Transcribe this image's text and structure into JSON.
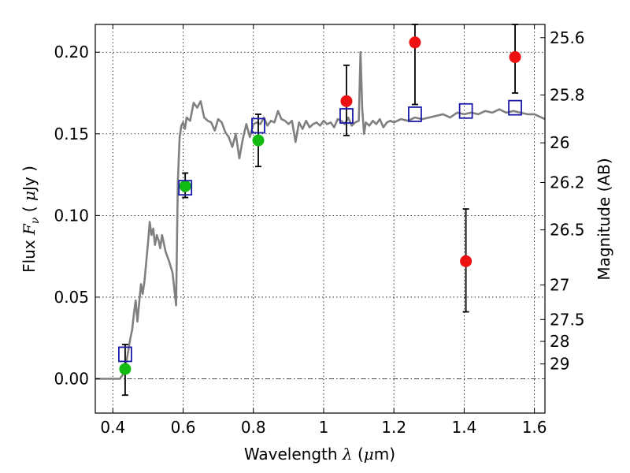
{
  "chart_data": {
    "type": "scatter",
    "xlabel": {
      "text": "Wavelength",
      "symbol": "λ",
      "unit_open": "(",
      "unit_mu": "μ",
      "unit_rest": "m)"
    },
    "ylabel": {
      "text": "Flux",
      "symbol": "F",
      "subscript": "ν",
      "unit_open": "(",
      "unit_mu": "μ",
      "unit_rest": "Jy",
      "unit_close": ")"
    },
    "ylabel_right": "Magnitude (AB)",
    "xlim": [
      0.35,
      1.63
    ],
    "ylim": [
      -0.021,
      0.217
    ],
    "x_ticks": [
      0.4,
      0.6,
      0.8,
      1.0,
      1.2,
      1.4,
      1.6
    ],
    "x_tick_labels": [
      "0.4",
      "0.6",
      "0.8",
      "1",
      "1.2",
      "1.4",
      "1.6"
    ],
    "y_ticks": [
      0.0,
      0.05,
      0.1,
      0.15,
      0.2
    ],
    "y_tick_labels": [
      "0.00",
      "0.05",
      "0.10",
      "0.15",
      "0.20"
    ],
    "mag_ticks": [
      {
        "label": "25.6",
        "flux": 0.2089
      },
      {
        "label": "25.8",
        "flux": 0.1738
      },
      {
        "label": "26",
        "flux": 0.1445
      },
      {
        "label": "26.2",
        "flux": 0.1202
      },
      {
        "label": "26.5",
        "flux": 0.0912
      },
      {
        "label": "27",
        "flux": 0.0575
      },
      {
        "label": "27.5",
        "flux": 0.0363
      },
      {
        "label": "28",
        "flux": 0.0229
      },
      {
        "label": "29",
        "flux": 0.0091
      }
    ],
    "grid": true,
    "colors": {
      "model": "#808080",
      "red": "#ee1111",
      "green": "#11bb11",
      "square": "#1a1aa8",
      "error": "#000000"
    },
    "series": [
      {
        "kind": "model-spectrum",
        "x": [
          0.35,
          0.42,
          0.43,
          0.44,
          0.45,
          0.455,
          0.46,
          0.465,
          0.47,
          0.48,
          0.485,
          0.49,
          0.5,
          0.505,
          0.51,
          0.515,
          0.52,
          0.525,
          0.53,
          0.535,
          0.54,
          0.55,
          0.56,
          0.57,
          0.575,
          0.58,
          0.585,
          0.59,
          0.595,
          0.6,
          0.605,
          0.61,
          0.62,
          0.63,
          0.64,
          0.65,
          0.66,
          0.67,
          0.68,
          0.69,
          0.7,
          0.71,
          0.72,
          0.73,
          0.74,
          0.75,
          0.76,
          0.77,
          0.78,
          0.79,
          0.8,
          0.81,
          0.82,
          0.83,
          0.84,
          0.85,
          0.86,
          0.87,
          0.88,
          0.89,
          0.9,
          0.91,
          0.92,
          0.93,
          0.94,
          0.95,
          0.96,
          0.97,
          0.98,
          0.99,
          1.0,
          1.01,
          1.02,
          1.03,
          1.04,
          1.05,
          1.06,
          1.07,
          1.08,
          1.09,
          1.1,
          1.105,
          1.11,
          1.115,
          1.12,
          1.13,
          1.14,
          1.15,
          1.16,
          1.17,
          1.18,
          1.19,
          1.2,
          1.22,
          1.24,
          1.26,
          1.28,
          1.3,
          1.32,
          1.34,
          1.36,
          1.38,
          1.4,
          1.42,
          1.44,
          1.46,
          1.48,
          1.5,
          1.52,
          1.54,
          1.56,
          1.58,
          1.6,
          1.63
        ],
        "y": [
          0.0,
          0.0,
          0.003,
          0.012,
          0.025,
          0.03,
          0.04,
          0.048,
          0.035,
          0.058,
          0.052,
          0.06,
          0.083,
          0.096,
          0.088,
          0.092,
          0.082,
          0.088,
          0.085,
          0.08,
          0.088,
          0.078,
          0.072,
          0.065,
          0.055,
          0.045,
          0.12,
          0.148,
          0.155,
          0.157,
          0.153,
          0.16,
          0.158,
          0.169,
          0.166,
          0.17,
          0.16,
          0.158,
          0.157,
          0.152,
          0.159,
          0.157,
          0.151,
          0.148,
          0.142,
          0.15,
          0.135,
          0.147,
          0.156,
          0.148,
          0.156,
          0.157,
          0.156,
          0.16,
          0.155,
          0.158,
          0.157,
          0.164,
          0.159,
          0.158,
          0.156,
          0.158,
          0.145,
          0.157,
          0.153,
          0.158,
          0.154,
          0.156,
          0.157,
          0.155,
          0.158,
          0.156,
          0.157,
          0.154,
          0.159,
          0.158,
          0.156,
          0.16,
          0.155,
          0.157,
          0.158,
          0.2,
          0.165,
          0.15,
          0.157,
          0.155,
          0.158,
          0.156,
          0.159,
          0.154,
          0.157,
          0.158,
          0.157,
          0.159,
          0.158,
          0.16,
          0.159,
          0.16,
          0.161,
          0.162,
          0.16,
          0.163,
          0.162,
          0.163,
          0.162,
          0.164,
          0.163,
          0.165,
          0.163,
          0.164,
          0.163,
          0.162,
          0.162,
          0.159
        ]
      },
      {
        "kind": "measured-red",
        "points": [
          {
            "x": 1.065,
            "y": 0.17,
            "err_low": 0.149,
            "err_high": 0.192
          },
          {
            "x": 1.26,
            "y": 0.206,
            "err_low": 0.168,
            "err_high": 0.217
          },
          {
            "x": 1.405,
            "y": 0.072,
            "err_low": 0.041,
            "err_high": 0.104
          },
          {
            "x": 1.545,
            "y": 0.197,
            "err_low": 0.175,
            "err_high": 0.217
          }
        ]
      },
      {
        "kind": "measured-green",
        "points": [
          {
            "x": 0.435,
            "y": 0.006,
            "err_low": -0.01,
            "err_high": 0.021
          },
          {
            "x": 0.606,
            "y": 0.118,
            "err_low": 0.111,
            "err_high": 0.126
          },
          {
            "x": 0.814,
            "y": 0.146,
            "err_low": 0.13,
            "err_high": 0.162
          }
        ]
      },
      {
        "kind": "model-photometry-squares",
        "points": [
          {
            "x": 0.435,
            "y": 0.015
          },
          {
            "x": 0.606,
            "y": 0.117
          },
          {
            "x": 0.814,
            "y": 0.155
          },
          {
            "x": 1.065,
            "y": 0.161
          },
          {
            "x": 1.26,
            "y": 0.162
          },
          {
            "x": 1.405,
            "y": 0.164
          },
          {
            "x": 1.545,
            "y": 0.166
          }
        ]
      }
    ]
  }
}
